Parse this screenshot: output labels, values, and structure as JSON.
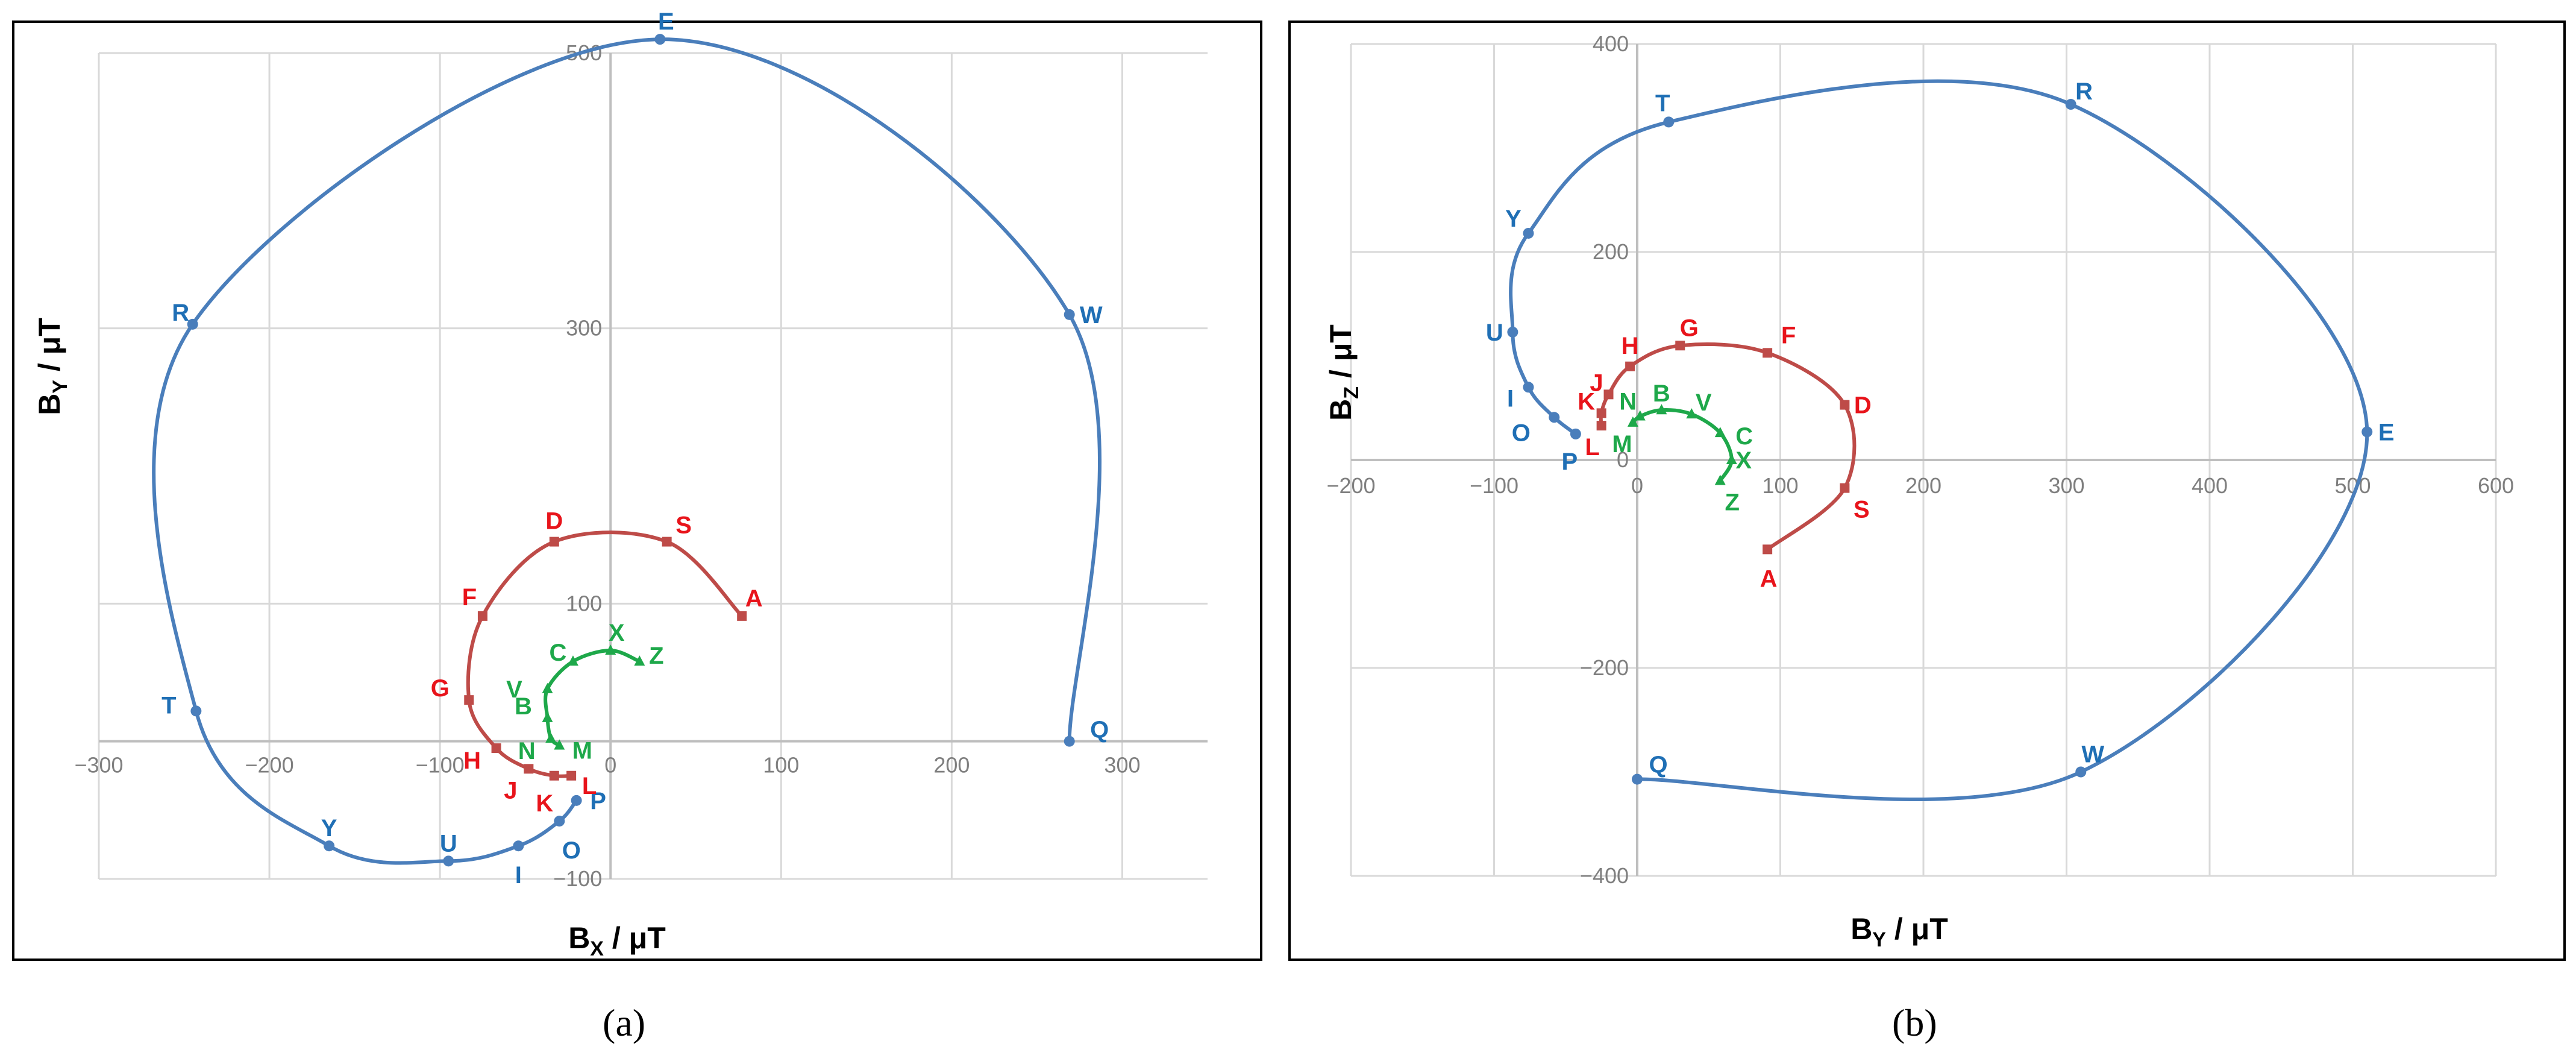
{
  "captions": {
    "a": "(a)",
    "b": "(b)"
  },
  "colors": {
    "blue": "#4a7ebb",
    "red": "#be4b48",
    "green": "#1ea84a",
    "blue_text": "#1f6fb5",
    "red_text": "#e8141b",
    "green_text": "#1ea84a"
  },
  "chart_data": [
    {
      "type": "line",
      "panel": "a",
      "xlabel_main": "B",
      "xlabel_sub": "X",
      "xlabel_unit": " / μT",
      "ylabel_main": "B",
      "ylabel_sub": "Y",
      "ylabel_unit": " / μT",
      "xlim": [
        -300,
        350
      ],
      "ylim": [
        -100,
        500
      ],
      "xticks": [
        -300,
        -200,
        -100,
        0,
        100,
        200,
        300
      ],
      "yticks": [
        -100,
        100,
        300,
        500
      ],
      "xtick_labels": [
        "−300",
        "−200",
        "−100",
        "0",
        "100",
        "200",
        "300"
      ],
      "ytick_labels": [
        "−100",
        "100",
        "300",
        "500"
      ],
      "grid": true,
      "series": [
        {
          "color_key": "blue",
          "marker": "circle",
          "points": [
            {
              "label": "Q",
              "x": 269,
              "y": 0
            },
            {
              "label": "W",
              "x": 269,
              "y": 310
            },
            {
              "label": "E",
              "x": 29,
              "y": 510
            },
            {
              "label": "R",
              "x": -245,
              "y": 303
            },
            {
              "label": "T",
              "x": -243,
              "y": 22
            },
            {
              "label": "Y",
              "x": -165,
              "y": -76
            },
            {
              "label": "U",
              "x": -95,
              "y": -87
            },
            {
              "label": "I",
              "x": -54,
              "y": -76
            },
            {
              "label": "O",
              "x": -30,
              "y": -58
            },
            {
              "label": "P",
              "x": -20,
              "y": -43
            }
          ]
        },
        {
          "color_key": "red",
          "marker": "square",
          "points": [
            {
              "label": "A",
              "x": 77,
              "y": 91
            },
            {
              "label": "S",
              "x": 33,
              "y": 145
            },
            {
              "label": "D",
              "x": -33,
              "y": 145
            },
            {
              "label": "F",
              "x": -75,
              "y": 91
            },
            {
              "label": "G",
              "x": -83,
              "y": 30
            },
            {
              "label": "H",
              "x": -67,
              "y": -5
            },
            {
              "label": "J",
              "x": -48,
              "y": -20
            },
            {
              "label": "K",
              "x": -33,
              "y": -25
            },
            {
              "label": "L",
              "x": -23,
              "y": -25
            }
          ]
        },
        {
          "color_key": "green",
          "marker": "triangle",
          "points": [
            {
              "label": "Z",
              "x": 17,
              "y": 58
            },
            {
              "label": "X",
              "x": 0,
              "y": 66
            },
            {
              "label": "C",
              "x": -22,
              "y": 58
            },
            {
              "label": "V",
              "x": -37,
              "y": 38
            },
            {
              "label": "B",
              "x": -37,
              "y": 17
            },
            {
              "label": "N",
              "x": -35,
              "y": 2
            },
            {
              "label": "M",
              "x": -30,
              "y": -3
            }
          ]
        }
      ]
    },
    {
      "type": "line",
      "panel": "b",
      "xlabel_main": "B",
      "xlabel_sub": "Y",
      "xlabel_unit": " / μT",
      "ylabel_main": "B",
      "ylabel_sub": "Z",
      "ylabel_unit": " / μT",
      "xlim": [
        -200,
        600
      ],
      "ylim": [
        -400,
        400
      ],
      "xticks": [
        -200,
        -100,
        0,
        100,
        200,
        300,
        400,
        500,
        600
      ],
      "yticks": [
        -400,
        -200,
        200,
        400
      ],
      "xtick_labels": [
        "−200",
        "−100",
        "0",
        "100",
        "200",
        "300",
        "400",
        "500",
        "600"
      ],
      "ytick_labels": [
        "−400",
        "−200",
        "200",
        "400"
      ],
      "origin_label": "0",
      "grid": true,
      "series": [
        {
          "color_key": "blue",
          "marker": "circle",
          "points": [
            {
              "label": "Q",
              "x": 0,
              "y": -307
            },
            {
              "label": "W",
              "x": 310,
              "y": -300
            },
            {
              "label": "E",
              "x": 510,
              "y": 27
            },
            {
              "label": "R",
              "x": 303,
              "y": 342
            },
            {
              "label": "T",
              "x": 22,
              "y": 325
            },
            {
              "label": "Y",
              "x": -76,
              "y": 218
            },
            {
              "label": "U",
              "x": -87,
              "y": 123
            },
            {
              "label": "I",
              "x": -76,
              "y": 70
            },
            {
              "label": "O",
              "x": -58,
              "y": 41
            },
            {
              "label": "P",
              "x": -43,
              "y": 25
            }
          ]
        },
        {
          "color_key": "red",
          "marker": "square",
          "points": [
            {
              "label": "A",
              "x": 91,
              "y": -86
            },
            {
              "label": "S",
              "x": 145,
              "y": -27
            },
            {
              "label": "D",
              "x": 145,
              "y": 53
            },
            {
              "label": "F",
              "x": 91,
              "y": 103
            },
            {
              "label": "G",
              "x": 30,
              "y": 110
            },
            {
              "label": "H",
              "x": -5,
              "y": 90
            },
            {
              "label": "J",
              "x": -20,
              "y": 63
            },
            {
              "label": "K",
              "x": -25,
              "y": 45
            },
            {
              "label": "L",
              "x": -25,
              "y": 33
            }
          ]
        },
        {
          "color_key": "green",
          "marker": "triangle",
          "points": [
            {
              "label": "Z",
              "x": 58,
              "y": -20
            },
            {
              "label": "X",
              "x": 66,
              "y": 0
            },
            {
              "label": "C",
              "x": 58,
              "y": 26
            },
            {
              "label": "V",
              "x": 38,
              "y": 44
            },
            {
              "label": "B",
              "x": 17,
              "y": 48
            },
            {
              "label": "N",
              "x": 2,
              "y": 42
            },
            {
              "label": "M",
              "x": -3,
              "y": 36
            }
          ]
        }
      ]
    }
  ]
}
